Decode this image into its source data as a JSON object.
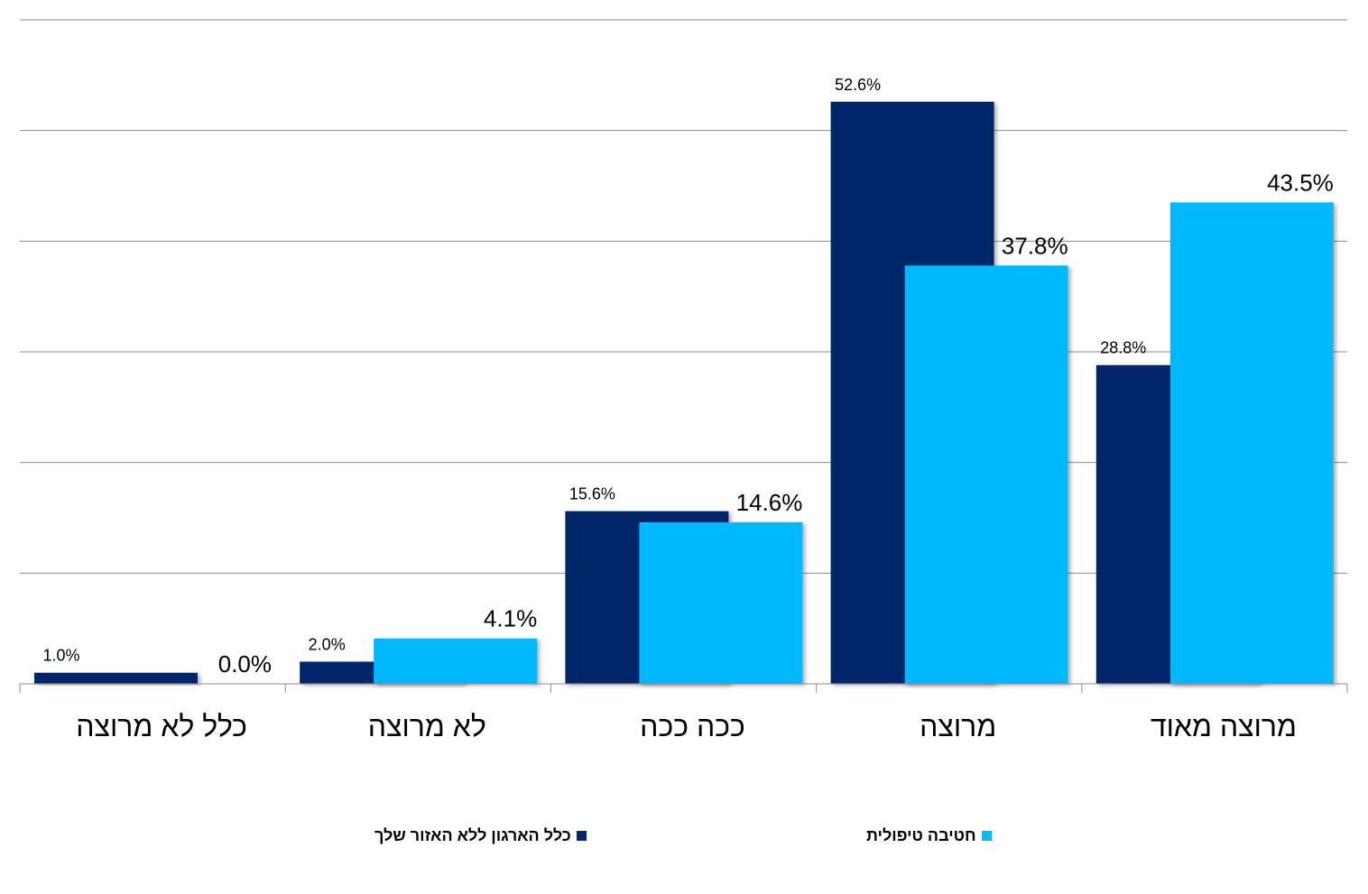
{
  "chart_data": {
    "type": "bar",
    "categories": [
      "כלל לא מרוצה",
      "לא מרוצה",
      "ככה ככה",
      "מרוצה",
      "מרוצה מאוד"
    ],
    "series": [
      {
        "name": "כלל הארגון ללא האזור שלך",
        "color": "#06266a",
        "values": [
          1.0,
          2.0,
          15.6,
          52.6,
          28.8
        ],
        "labels": [
          "1.0%",
          "2.0%",
          "15.6%",
          "52.6%",
          "28.8%"
        ]
      },
      {
        "name": "חטיבה טיפולית",
        "color": "#06b9fc",
        "values": [
          0.0,
          4.1,
          14.6,
          37.8,
          43.5
        ],
        "labels": [
          "0.0%",
          "4.1%",
          "14.6%",
          "37.8%",
          "43.5%"
        ]
      }
    ],
    "ylim": [
      0,
      60
    ],
    "grid": true,
    "legend_position": "bottom"
  }
}
